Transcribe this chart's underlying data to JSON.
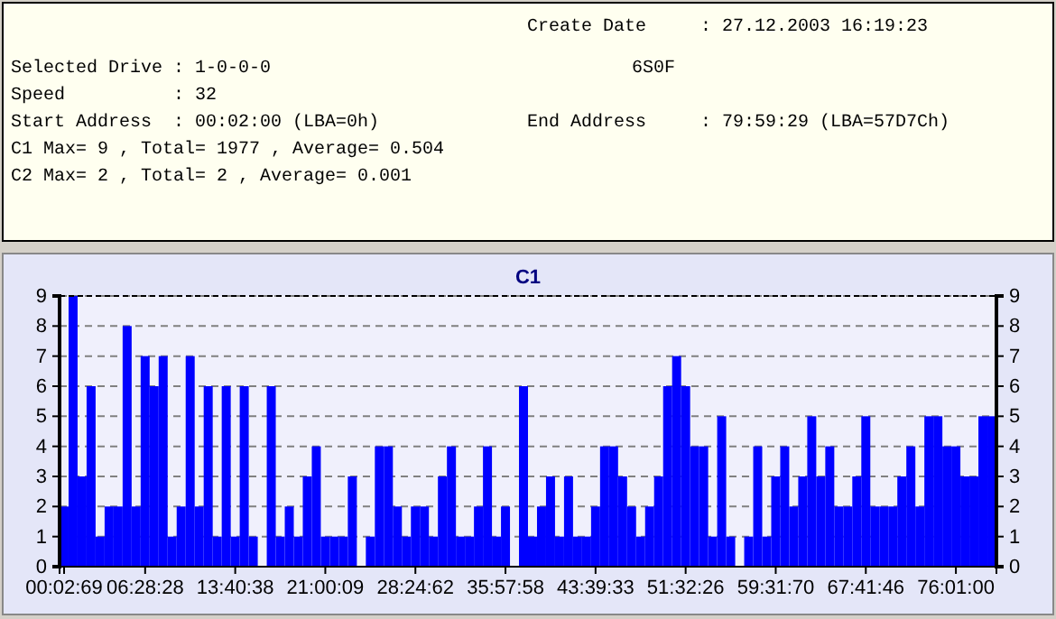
{
  "chart_data": {
    "type": "bar",
    "title": "C1",
    "annotations": [
      "Create Date",
      "                : 27.12.2003 16:19:23",
      "Selected Drive : 1-0-0-0",
      "6S0F",
      "Speed          : 32",
      "Start Address  : 00:02:00 (LBA=0h)",
      "End Address",
      "                : 79:59:29 (LBA=57D7Ch)",
      "C1 Max= 9 , Total= 1977 , Average= 0.504",
      "C2 Max= 2 , Total= 2 , Average= 0.001"
    ],
    "categories": [
      "00:02:69",
      null,
      null,
      null,
      null,
      null,
      null,
      null,
      null,
      "06:28:28",
      null,
      null,
      null,
      null,
      null,
      null,
      null,
      null,
      null,
      "13:40:38",
      null,
      null,
      null,
      null,
      null,
      null,
      null,
      null,
      null,
      "21:00:09",
      null,
      null,
      null,
      null,
      null,
      null,
      null,
      null,
      null,
      "28:24:62",
      null,
      null,
      null,
      null,
      null,
      null,
      null,
      null,
      null,
      "35:57:58",
      null,
      null,
      null,
      null,
      null,
      null,
      null,
      null,
      null,
      "43:39:33",
      null,
      null,
      null,
      null,
      null,
      null,
      null,
      null,
      null,
      "51:32:26",
      null,
      null,
      null,
      null,
      null,
      null,
      null,
      null,
      null,
      "59:31:70",
      null,
      null,
      null,
      null,
      null,
      null,
      null,
      null,
      null,
      "67:41:46",
      null,
      null,
      null,
      null,
      null,
      null,
      null,
      null,
      null,
      "76:01:00",
      null,
      null,
      null,
      null
    ],
    "values": [
      2,
      9,
      3,
      6,
      1,
      2,
      2,
      8,
      2,
      7,
      6,
      7,
      1,
      2,
      7,
      2,
      6,
      1,
      6,
      1,
      6,
      1,
      0,
      6,
      1,
      2,
      1,
      3,
      4,
      1,
      1,
      1,
      3,
      0,
      1,
      4,
      4,
      2,
      1,
      2,
      2,
      1,
      3,
      4,
      1,
      1,
      2,
      4,
      1,
      2,
      0,
      6,
      1,
      2,
      3,
      1,
      3,
      1,
      1,
      2,
      4,
      4,
      3,
      2,
      1,
      2,
      3,
      6,
      7,
      6,
      4,
      4,
      1,
      5,
      1,
      0,
      1,
      4,
      1,
      3,
      4,
      2,
      3,
      5,
      3,
      4,
      2,
      2,
      3,
      5,
      2,
      2,
      2,
      3,
      4,
      2,
      5,
      5,
      4,
      4,
      3,
      3,
      5,
      5
    ],
    "color": "#0000ff",
    "ylim": [
      0,
      9
    ],
    "yticks": [
      0,
      1,
      2,
      3,
      4,
      5,
      6,
      7,
      8,
      9
    ],
    "y2lim": [
      0,
      9
    ],
    "y2ticks": [
      0,
      1,
      2,
      3,
      4,
      5,
      6,
      7,
      8,
      9
    ],
    "grid": "y"
  }
}
